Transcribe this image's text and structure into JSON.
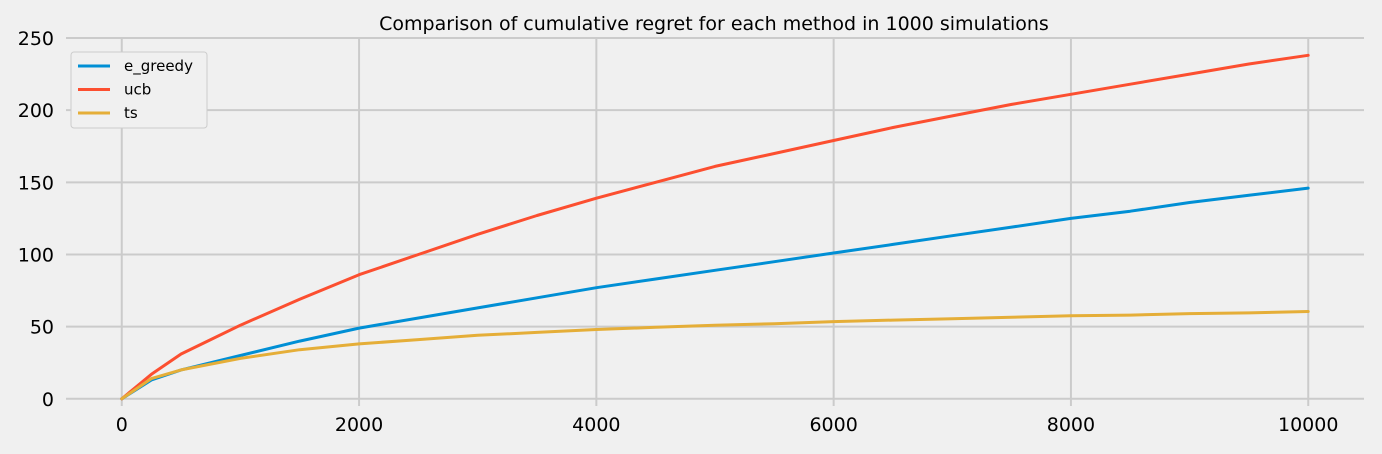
{
  "chart_data": {
    "type": "line",
    "title": "Comparison of cumulative regret for each method in 1000 simulations",
    "xlabel": "",
    "ylabel": "",
    "xlim": [
      -470,
      10470
    ],
    "ylim": [
      -5,
      250
    ],
    "xticks": [
      0,
      2000,
      4000,
      6000,
      8000,
      10000
    ],
    "yticks": [
      0,
      50,
      100,
      150,
      200,
      250
    ],
    "grid": true,
    "legend": "top-left",
    "colors": {
      "background": "#f0f0f0",
      "grid": "#cbcbcb",
      "text": "#000000"
    },
    "x": [
      0,
      250,
      500,
      750,
      1000,
      1500,
      2000,
      2500,
      3000,
      3500,
      4000,
      4500,
      5000,
      5500,
      6000,
      6500,
      7000,
      7500,
      8000,
      8500,
      9000,
      9500,
      10000
    ],
    "series": [
      {
        "name": "e_greedy",
        "color": "#008fd5",
        "values": [
          0,
          13,
          20,
          25,
          30,
          40,
          49,
          56,
          63,
          70,
          77,
          83,
          89,
          95,
          101,
          107,
          113,
          119,
          125,
          130,
          136,
          141,
          146
        ]
      },
      {
        "name": "ucb",
        "color": "#fc4f30",
        "values": [
          0,
          17,
          31,
          41,
          51,
          69,
          86,
          100,
          114,
          127,
          139,
          150,
          161,
          170,
          179,
          188,
          196,
          204,
          211,
          218,
          225,
          232,
          238
        ]
      },
      {
        "name": "ts",
        "color": "#e5ae38",
        "values": [
          0,
          14,
          20,
          24,
          28,
          34,
          38,
          41,
          44,
          46,
          48,
          49.5,
          51,
          52,
          53.5,
          54.5,
          55.5,
          56.5,
          57.5,
          58,
          59,
          59.5,
          60.5
        ]
      }
    ]
  }
}
